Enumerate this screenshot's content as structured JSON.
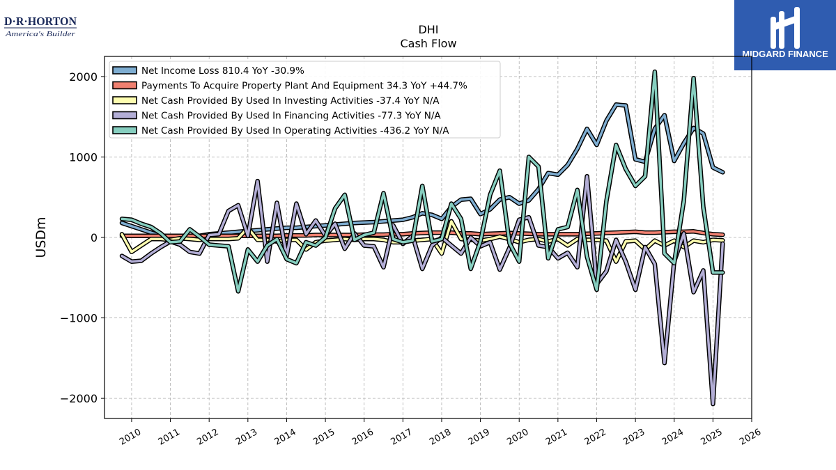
{
  "branding": {
    "left_logo_line1": "D·R·HORTON",
    "left_logo_line2": "America's Builder",
    "right_logo_text": "MIDGARD FINANCE",
    "right_logo_bg": "#2f5cb0"
  },
  "chart_data": {
    "type": "line",
    "title": "DHI",
    "subtitle": "Cash Flow",
    "xlabel": "",
    "ylabel": "USDm",
    "xlim": [
      2009.3,
      2026
    ],
    "ylim": [
      -2250,
      2250
    ],
    "yticks": [
      2000,
      1000,
      0,
      -1000,
      -2000
    ],
    "ytick_labels": [
      "2000",
      "1000",
      "0",
      "−1000",
      "−2000"
    ],
    "xticks": [
      2010,
      2011,
      2012,
      2013,
      2014,
      2015,
      2016,
      2017,
      2018,
      2019,
      2020,
      2021,
      2022,
      2023,
      2024,
      2025,
      2026
    ],
    "grid": true,
    "legend_position": "top-left",
    "x": [
      2009.75,
      2010.0,
      2010.25,
      2010.5,
      2010.75,
      2011.0,
      2011.25,
      2011.5,
      2011.75,
      2012.0,
      2012.25,
      2012.5,
      2012.75,
      2013.0,
      2013.25,
      2013.5,
      2013.75,
      2014.0,
      2014.25,
      2014.5,
      2014.75,
      2015.0,
      2015.25,
      2015.5,
      2015.75,
      2016.0,
      2016.25,
      2016.5,
      2016.75,
      2017.0,
      2017.25,
      2017.5,
      2017.75,
      2018.0,
      2018.25,
      2018.5,
      2018.75,
      2019.0,
      2019.25,
      2019.5,
      2019.75,
      2020.0,
      2020.25,
      2020.5,
      2020.75,
      2021.0,
      2021.25,
      2021.5,
      2021.75,
      2022.0,
      2022.25,
      2022.5,
      2022.75,
      2023.0,
      2023.25,
      2023.5,
      2023.75,
      2024.0,
      2024.25,
      2024.5,
      2024.75,
      2025.0,
      2025.25
    ],
    "series": [
      {
        "name": "Net Income Loss  810.4 YoY -30.9%",
        "color": "#7eadd1",
        "values": [
          180,
          140,
          100,
          60,
          20,
          0,
          10,
          10,
          20,
          40,
          50,
          60,
          70,
          80,
          90,
          100,
          110,
          120,
          120,
          130,
          140,
          150,
          160,
          170,
          180,
          185,
          190,
          200,
          210,
          220,
          250,
          300,
          280,
          230,
          380,
          470,
          480,
          290,
          350,
          470,
          500,
          420,
          460,
          600,
          800,
          780,
          900,
          1100,
          1350,
          1150,
          1450,
          1650,
          1640,
          970,
          940,
          1350,
          1520,
          950,
          1170,
          1360,
          1290,
          870,
          810
        ]
      },
      {
        "name": "Payments To Acquire Property Plant And Equipment  34.3 YoY +44.7%",
        "color": "#f08070",
        "values": [
          20,
          20,
          20,
          20,
          20,
          20,
          20,
          20,
          20,
          20,
          20,
          20,
          20,
          20,
          20,
          20,
          20,
          25,
          25,
          25,
          30,
          30,
          30,
          30,
          30,
          35,
          35,
          35,
          40,
          40,
          50,
          55,
          60,
          60,
          60,
          50,
          50,
          40,
          45,
          50,
          55,
          50,
          45,
          40,
          40,
          40,
          40,
          40,
          45,
          50,
          55,
          60,
          65,
          70,
          60,
          60,
          65,
          70,
          70,
          75,
          55,
          40,
          34
        ]
      },
      {
        "name": "Net Cash Provided By Used In Investing Activities  -37.4 YoY N/A",
        "color": "#fdfdb0",
        "values": [
          40,
          -180,
          -100,
          -20,
          -20,
          -30,
          -10,
          -20,
          -30,
          -20,
          -20,
          -20,
          -10,
          120,
          -30,
          -30,
          -50,
          -30,
          -30,
          -150,
          -60,
          -40,
          -30,
          -20,
          -30,
          -20,
          -20,
          -30,
          -60,
          -60,
          -40,
          -30,
          -20,
          -200,
          200,
          -20,
          -30,
          -40,
          -20,
          10,
          -20,
          -60,
          -30,
          -20,
          -50,
          -20,
          -100,
          -20,
          -30,
          -30,
          -40,
          -300,
          -50,
          -40,
          -150,
          -40,
          -100,
          -40,
          -120,
          -40,
          -60,
          -30,
          -37
        ]
      },
      {
        "name": "Net Cash Provided By Used In Financing Activities  -77.3 YoY N/A",
        "color": "#b3aed6",
        "values": [
          -230,
          -300,
          -290,
          -200,
          -120,
          -50,
          -90,
          -180,
          -200,
          30,
          40,
          330,
          400,
          20,
          700,
          -300,
          430,
          -230,
          420,
          40,
          210,
          20,
          170,
          -140,
          50,
          -100,
          -110,
          -370,
          150,
          -80,
          20,
          -390,
          -100,
          0,
          -100,
          -200,
          0,
          -110,
          -60,
          -400,
          -130,
          220,
          250,
          -100,
          -120,
          -260,
          -190,
          -370,
          760,
          -580,
          -420,
          -30,
          -300,
          -650,
          -120,
          -330,
          -1560,
          -300,
          50,
          -680,
          -410,
          -2070,
          -77
        ]
      },
      {
        "name": "Net Cash Provided By Used In Operating Activities  -436.2 YoY N/A",
        "color": "#86cebf",
        "values": [
          230,
          220,
          170,
          130,
          50,
          -60,
          -50,
          100,
          10,
          -90,
          -100,
          -110,
          -670,
          -150,
          -300,
          -100,
          -20,
          -270,
          -320,
          -60,
          -100,
          0,
          360,
          530,
          -30,
          30,
          60,
          550,
          -20,
          -60,
          -40,
          640,
          -50,
          -20,
          420,
          230,
          -390,
          -50,
          530,
          830,
          -70,
          -300,
          1000,
          880,
          -260,
          100,
          130,
          590,
          -240,
          -650,
          450,
          1150,
          850,
          640,
          760,
          2060,
          -200,
          -320,
          460,
          1980,
          380,
          -436,
          -436
        ]
      }
    ]
  }
}
